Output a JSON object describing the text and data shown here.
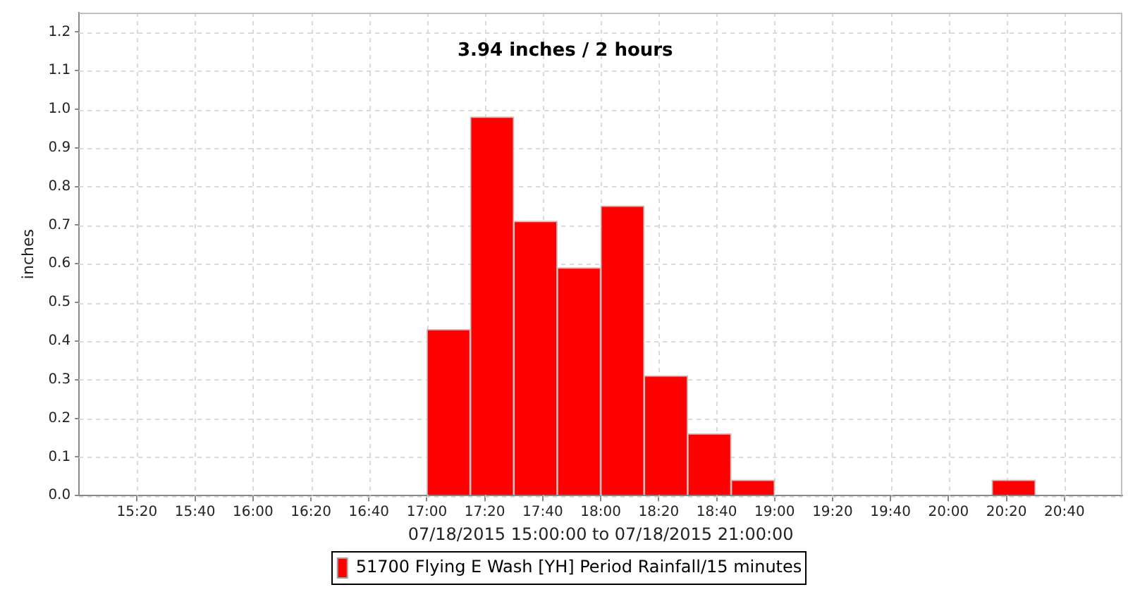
{
  "chart_data": {
    "type": "histogram",
    "annotations": [
      "3.94 inches / 2 hours"
    ],
    "xlabel": "07/18/2015 15:00:00 to 07/18/2015 21:00:00",
    "ylabel": "inches",
    "bins": [
      17,
      17.25,
      17.5,
      17.75,
      18,
      18.25,
      18.5,
      18.75,
      19,
      19.25,
      19.5,
      19.75,
      20,
      20.25,
      20.5
    ],
    "series": [
      {
        "name": "51700 Flying E Wash [YH] Period Rainfall/15 minutes",
        "color": "#ff0000",
        "values": [
          0.43,
          0.98,
          0.71,
          0.59,
          0.75,
          0.31,
          0.16,
          0.04,
          0,
          0,
          0,
          0,
          0,
          0.04
        ]
      }
    ],
    "xlim": [
      15,
      21
    ],
    "xticks": [
      {
        "value": 15.3333,
        "label": "15:20"
      },
      {
        "value": 15.6667,
        "label": "15:40"
      },
      {
        "value": 16,
        "label": "16:00"
      },
      {
        "value": 16.3333,
        "label": "16:20"
      },
      {
        "value": 16.6667,
        "label": "16:40"
      },
      {
        "value": 17,
        "label": "17:00"
      },
      {
        "value": 17.3333,
        "label": "17:20"
      },
      {
        "value": 17.6667,
        "label": "17:40"
      },
      {
        "value": 18,
        "label": "18:00"
      },
      {
        "value": 18.3333,
        "label": "18:20"
      },
      {
        "value": 18.6667,
        "label": "18:40"
      },
      {
        "value": 19,
        "label": "19:00"
      },
      {
        "value": 19.3333,
        "label": "19:20"
      },
      {
        "value": 19.6667,
        "label": "19:40"
      },
      {
        "value": 20,
        "label": "20:00"
      },
      {
        "value": 20.3333,
        "label": "20:20"
      },
      {
        "value": 20.6667,
        "label": "20:40"
      }
    ],
    "ylim": [
      0,
      1.25
    ],
    "yticks": [
      {
        "value": 0,
        "label": "0.0"
      },
      0.1,
      0.2,
      0.3,
      0.4,
      0.5,
      0.6,
      0.7,
      0.8,
      0.9,
      {
        "value": 1,
        "label": "1.0"
      },
      1.1,
      1.2
    ],
    "grid": true,
    "legend": "bottom"
  }
}
